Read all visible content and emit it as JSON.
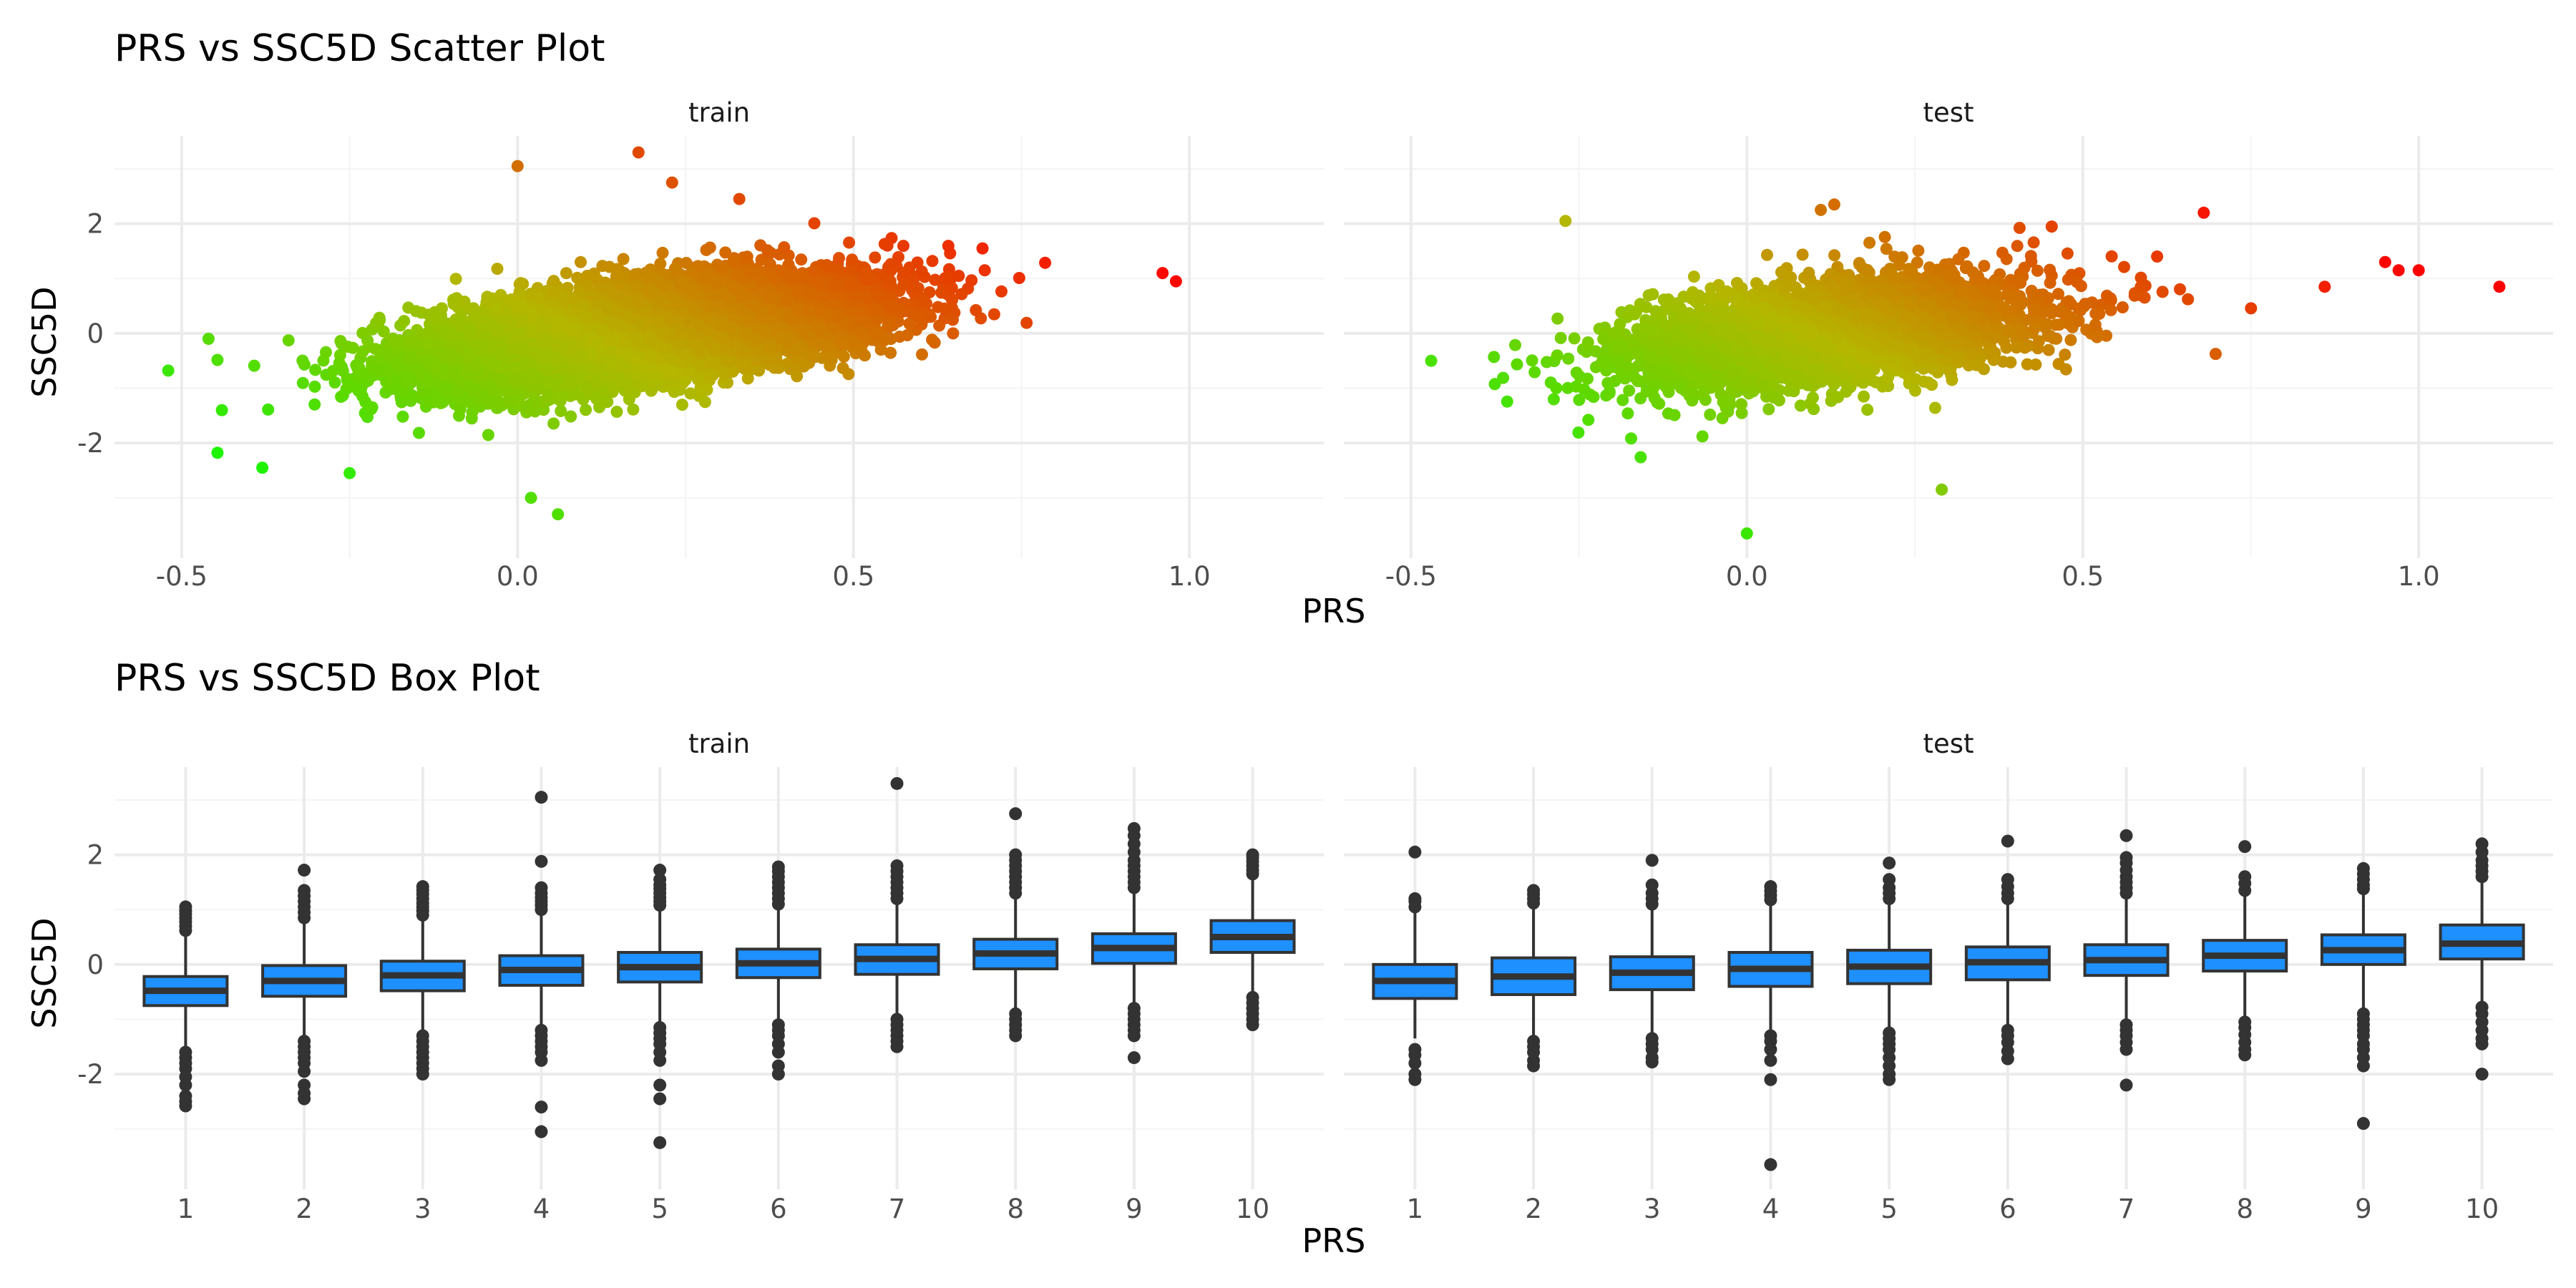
{
  "chart_data": [
    {
      "type": "scatter",
      "title": "PRS vs SSC5D Scatter Plot",
      "xlabel": "PRS",
      "ylabel": "SSC5D",
      "grid": true,
      "legend": "none",
      "color_scale": {
        "low": "#00ff00",
        "mid": "#b5b600",
        "high": "#ff0000"
      },
      "panels": [
        {
          "name": "train",
          "xlim": [
            -0.6,
            1.2
          ],
          "ylim": [
            -4.1,
            3.6
          ],
          "xticks": [
            -0.5,
            0.0,
            0.5,
            1.0
          ],
          "xtick_labels": [
            "-0.5",
            "0.0",
            "0.5",
            "1.0"
          ],
          "yticks": [
            -2,
            0,
            2
          ],
          "ytick_labels": [
            "-2",
            "0",
            "2"
          ],
          "n_points": 9000,
          "x_mean": 0.18,
          "x_sd": 0.16,
          "slope": 1.6,
          "resid_sd": 0.42,
          "outliers": [
            [
              -0.52,
              -0.68
            ],
            [
              0.0,
              3.05
            ],
            [
              0.18,
              3.3
            ],
            [
              0.23,
              2.75
            ],
            [
              0.33,
              2.45
            ],
            [
              0.06,
              -3.3
            ],
            [
              0.02,
              -3.0
            ],
            [
              -0.46,
              -0.1
            ],
            [
              0.96,
              1.1
            ],
            [
              0.98,
              0.95
            ],
            [
              -0.38,
              -2.45
            ],
            [
              -0.25,
              -2.55
            ]
          ]
        },
        {
          "name": "test",
          "xlim": [
            -0.6,
            1.2
          ],
          "ylim": [
            -4.1,
            3.6
          ],
          "xticks": [
            -0.5,
            0.0,
            0.5,
            1.0
          ],
          "xtick_labels": [
            "-0.5",
            "0.0",
            "0.5",
            "1.0"
          ],
          "yticks": [
            -2,
            0,
            2
          ],
          "ytick_labels": [
            "-2",
            "0",
            "2"
          ],
          "n_points": 3600,
          "x_mean": 0.12,
          "x_sd": 0.15,
          "slope": 1.5,
          "resid_sd": 0.45,
          "outliers": [
            [
              -0.27,
              2.05
            ],
            [
              0.13,
              2.35
            ],
            [
              0.11,
              2.25
            ],
            [
              0.68,
              2.2
            ],
            [
              0.0,
              -3.65
            ],
            [
              0.29,
              -2.85
            ],
            [
              0.97,
              1.15
            ],
            [
              1.0,
              1.15
            ],
            [
              1.12,
              0.85
            ],
            [
              0.95,
              1.3
            ],
            [
              0.86,
              0.85
            ],
            [
              -0.47,
              -0.5
            ]
          ]
        }
      ]
    },
    {
      "type": "box",
      "title": "PRS vs SSC5D Box Plot",
      "xlabel": "PRS",
      "ylabel": "SSC5D",
      "grid": true,
      "legend": "none",
      "box_fill": "#1e90ff",
      "box_line": "#333333",
      "panels": [
        {
          "name": "train",
          "categories": [
            "1",
            "2",
            "3",
            "4",
            "5",
            "6",
            "7",
            "8",
            "9",
            "10"
          ],
          "ylim": [
            -4.1,
            3.6
          ],
          "yticks": [
            -2,
            0,
            2
          ],
          "ytick_labels": [
            "-2",
            "0",
            "2"
          ],
          "boxes": [
            {
              "q1": -0.75,
              "median": -0.48,
              "q3": -0.22,
              "low": -1.5,
              "high": 0.55,
              "out_hi": [
                0.62,
                0.7,
                0.78,
                0.85,
                0.92,
                0.98,
                1.05
              ],
              "out_lo": [
                -1.6,
                -1.7,
                -1.8,
                -1.9,
                -2.05,
                -2.2,
                -2.4,
                -2.5,
                -2.58
              ]
            },
            {
              "q1": -0.58,
              "median": -0.3,
              "q3": -0.02,
              "low": -1.35,
              "high": 0.78,
              "out_hi": [
                0.85,
                0.95,
                1.05,
                1.15,
                1.25,
                1.35,
                1.72
              ],
              "out_lo": [
                -1.4,
                -1.5,
                -1.6,
                -1.7,
                -1.8,
                -1.95,
                -2.2,
                -2.35,
                -2.45
              ]
            },
            {
              "q1": -0.48,
              "median": -0.2,
              "q3": 0.06,
              "low": -1.25,
              "high": 0.85,
              "out_hi": [
                0.9,
                0.98,
                1.05,
                1.12,
                1.2,
                1.28,
                1.35,
                1.42
              ],
              "out_lo": [
                -1.3,
                -1.4,
                -1.5,
                -1.6,
                -1.7,
                -1.8,
                -1.9,
                -2.0
              ]
            },
            {
              "q1": -0.38,
              "median": -0.1,
              "q3": 0.16,
              "low": -1.15,
              "high": 0.95,
              "out_hi": [
                1.0,
                1.08,
                1.15,
                1.22,
                1.3,
                1.4,
                1.88,
                3.05
              ],
              "out_lo": [
                -1.2,
                -1.3,
                -1.4,
                -1.5,
                -1.6,
                -1.75,
                -2.6,
                -3.05
              ]
            },
            {
              "q1": -0.32,
              "median": -0.05,
              "q3": 0.22,
              "low": -1.1,
              "high": 1.0,
              "out_hi": [
                1.08,
                1.15,
                1.22,
                1.3,
                1.38,
                1.45,
                1.55,
                1.72
              ],
              "out_lo": [
                -1.15,
                -1.25,
                -1.35,
                -1.45,
                -1.6,
                -1.75,
                -2.2,
                -2.45,
                -3.25
              ]
            },
            {
              "q1": -0.24,
              "median": 0.02,
              "q3": 0.28,
              "low": -1.0,
              "high": 1.05,
              "out_hi": [
                1.1,
                1.2,
                1.3,
                1.4,
                1.5,
                1.6,
                1.7,
                1.78
              ],
              "out_lo": [
                -1.1,
                -1.2,
                -1.3,
                -1.45,
                -1.6,
                -1.85,
                -2.0
              ]
            },
            {
              "q1": -0.18,
              "median": 0.1,
              "q3": 0.36,
              "low": -0.95,
              "high": 1.15,
              "out_hi": [
                1.2,
                1.3,
                1.4,
                1.5,
                1.6,
                1.7,
                1.8,
                3.3
              ],
              "out_lo": [
                -1.0,
                -1.1,
                -1.2,
                -1.3,
                -1.4,
                -1.5
              ]
            },
            {
              "q1": -0.08,
              "median": 0.2,
              "q3": 0.46,
              "low": -0.82,
              "high": 1.25,
              "out_hi": [
                1.3,
                1.4,
                1.5,
                1.6,
                1.7,
                1.8,
                1.9,
                2.0,
                2.75
              ],
              "out_lo": [
                -0.9,
                -1.0,
                -1.1,
                -1.2,
                -1.3
              ]
            },
            {
              "q1": 0.02,
              "median": 0.3,
              "q3": 0.56,
              "low": -0.72,
              "high": 1.35,
              "out_hi": [
                1.4,
                1.5,
                1.6,
                1.7,
                1.8,
                1.9,
                2.05,
                2.2,
                2.35,
                2.48
              ],
              "out_lo": [
                -0.8,
                -0.9,
                -1.0,
                -1.1,
                -1.2,
                -1.3,
                -1.7
              ]
            },
            {
              "q1": 0.22,
              "median": 0.5,
              "q3": 0.8,
              "low": -0.55,
              "high": 1.6,
              "out_hi": [
                1.65,
                1.72,
                1.8,
                1.88,
                1.95,
                2.0
              ],
              "out_lo": [
                -0.6,
                -0.7,
                -0.8,
                -0.9,
                -1.0,
                -1.1
              ]
            }
          ]
        },
        {
          "name": "test",
          "categories": [
            "1",
            "2",
            "3",
            "4",
            "5",
            "6",
            "7",
            "8",
            "9",
            "10"
          ],
          "ylim": [
            -4.1,
            3.6
          ],
          "yticks": [
            -2,
            0,
            2
          ],
          "ytick_labels": [
            "-2",
            "0",
            "2"
          ],
          "boxes": [
            {
              "q1": -0.62,
              "median": -0.3,
              "q3": 0.0,
              "low": -1.35,
              "high": 0.95,
              "out_hi": [
                1.05,
                1.15,
                1.2,
                2.05
              ],
              "out_lo": [
                -1.55,
                -1.65,
                -1.8,
                -2.0,
                -2.1
              ]
            },
            {
              "q1": -0.55,
              "median": -0.22,
              "q3": 0.12,
              "low": -1.3,
              "high": 1.05,
              "out_hi": [
                1.12,
                1.2,
                1.28,
                1.35
              ],
              "out_lo": [
                -1.4,
                -1.5,
                -1.6,
                -1.75,
                -1.85
              ]
            },
            {
              "q1": -0.46,
              "median": -0.15,
              "q3": 0.14,
              "low": -1.25,
              "high": 1.0,
              "out_hi": [
                1.1,
                1.2,
                1.3,
                1.45,
                1.9
              ],
              "out_lo": [
                -1.35,
                -1.45,
                -1.55,
                -1.7,
                -1.78
              ]
            },
            {
              "q1": -0.4,
              "median": -0.08,
              "q3": 0.22,
              "low": -1.2,
              "high": 1.1,
              "out_hi": [
                1.18,
                1.26,
                1.34,
                1.42
              ],
              "out_lo": [
                -1.3,
                -1.4,
                -1.55,
                -1.75,
                -2.1,
                -3.65
              ]
            },
            {
              "q1": -0.35,
              "median": -0.04,
              "q3": 0.26,
              "low": -1.15,
              "high": 1.1,
              "out_hi": [
                1.2,
                1.3,
                1.4,
                1.55,
                1.85
              ],
              "out_lo": [
                -1.25,
                -1.35,
                -1.45,
                -1.55,
                -1.7,
                -1.85,
                -2.0,
                -2.1
              ]
            },
            {
              "q1": -0.28,
              "median": 0.04,
              "q3": 0.32,
              "low": -1.1,
              "high": 1.15,
              "out_hi": [
                1.2,
                1.3,
                1.42,
                1.55,
                2.25
              ],
              "out_lo": [
                -1.2,
                -1.3,
                -1.42,
                -1.58,
                -1.72
              ]
            },
            {
              "q1": -0.2,
              "median": 0.08,
              "q3": 0.36,
              "low": -1.0,
              "high": 1.2,
              "out_hi": [
                1.3,
                1.4,
                1.5,
                1.6,
                1.72,
                1.85,
                1.95,
                2.35
              ],
              "out_lo": [
                -1.1,
                -1.2,
                -1.3,
                -1.42,
                -1.55,
                -2.2
              ]
            },
            {
              "q1": -0.12,
              "median": 0.16,
              "q3": 0.44,
              "low": -0.95,
              "high": 1.25,
              "out_hi": [
                1.35,
                1.48,
                1.6,
                2.15
              ],
              "out_lo": [
                -1.05,
                -1.15,
                -1.28,
                -1.42,
                -1.55,
                -1.65
              ]
            },
            {
              "q1": 0.0,
              "median": 0.26,
              "q3": 0.54,
              "low": -0.82,
              "high": 1.3,
              "out_hi": [
                1.38,
                1.45,
                1.55,
                1.65,
                1.75
              ],
              "out_lo": [
                -0.9,
                -1.0,
                -1.1,
                -1.2,
                -1.3,
                -1.45,
                -1.55,
                -1.7,
                -1.85,
                -2.9
              ]
            },
            {
              "q1": 0.1,
              "median": 0.38,
              "q3": 0.72,
              "low": -0.72,
              "high": 1.5,
              "out_hi": [
                1.6,
                1.7,
                1.8,
                1.9,
                2.05,
                2.2
              ],
              "out_lo": [
                -0.78,
                -0.9,
                -1.05,
                -1.2,
                -1.35,
                -1.45,
                -2.0
              ]
            }
          ]
        }
      ]
    }
  ]
}
